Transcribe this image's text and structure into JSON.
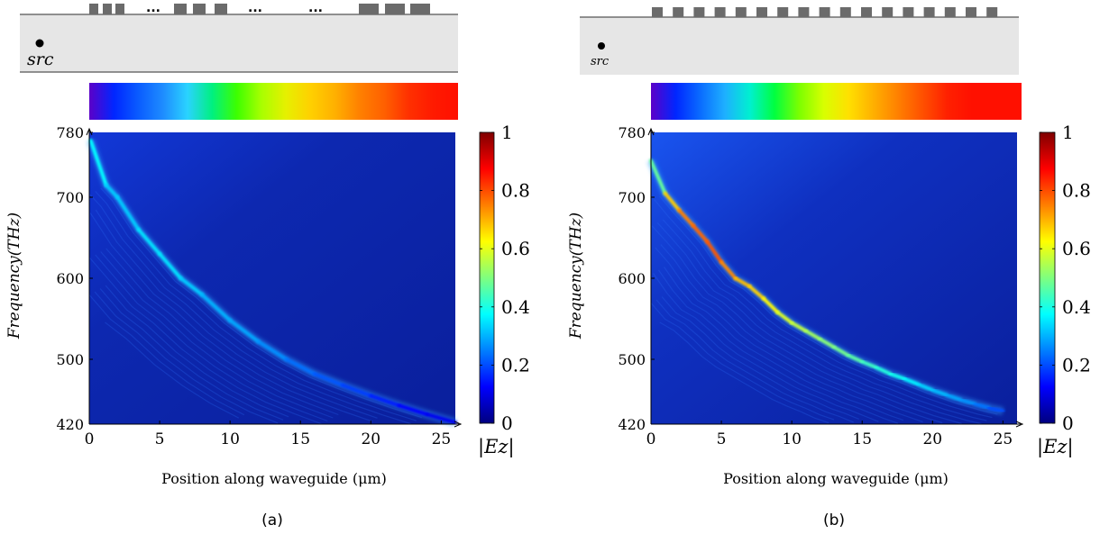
{
  "colors": {
    "waveguide_fill": "#e6e6e6",
    "waveguide_edge": "#555555",
    "grating_tooth": "#6b6b6b",
    "map_background": "#0a1f9c",
    "trace_low": "#1e64ff",
    "trace_high": "#ff4010"
  },
  "colormap": [
    "#00007f",
    "#0000ff",
    "#007fff",
    "#00ffff",
    "#7fff7f",
    "#ffff00",
    "#ff7f00",
    "#ff0000",
    "#7f0000"
  ],
  "panels": [
    {
      "caption": "(a)",
      "source_label": "src",
      "ellipsis": [
        "...",
        "...",
        "..."
      ],
      "spectrum_stops": [
        "#5c00c8",
        "#0026ff",
        "#0a5cff",
        "#1e8cff",
        "#2ad3ff",
        "#00f080",
        "#3cff00",
        "#a8ff00",
        "#e6f000",
        "#ffd000",
        "#ffb000",
        "#ff8000",
        "#ff6000",
        "#ff3000",
        "#ff1a00",
        "#ff1000"
      ]
    },
    {
      "caption": "(b)",
      "source_label": "src",
      "spectrum_stops": [
        "#5c00c8",
        "#0026ff",
        "#0a6cff",
        "#1eb0ff",
        "#00f0d0",
        "#00ff40",
        "#7cff00",
        "#d8ff00",
        "#ffe000",
        "#ffb000",
        "#ff8000",
        "#ff5000",
        "#ff2000",
        "#ff1000",
        "#ff1000",
        "#ff1000"
      ]
    }
  ],
  "chart_data": [
    {
      "type": "heatmap",
      "panel": "(a)",
      "xlabel": "Position along waveguide (μm)",
      "ylabel": "Frequency(THz)",
      "xlim": [
        0,
        26
      ],
      "ylim": [
        420,
        780
      ],
      "x_ticks": [
        0,
        5,
        10,
        15,
        20,
        25
      ],
      "y_ticks": [
        420,
        500,
        600,
        700,
        780
      ],
      "colorbar_label": "|Ez|",
      "colorbar_range": [
        0,
        1
      ],
      "colorbar_ticks": [
        0,
        0.2,
        0.4,
        0.6,
        0.8,
        1
      ],
      "ridge": {
        "x": [
          0.1,
          1.2,
          2.0,
          3.5,
          5.0,
          6.5,
          8.0,
          10.0,
          12.0,
          14.0,
          16.0,
          18.0,
          20.0,
          22.0,
          24.0,
          26.0
        ],
        "y": [
          770,
          715,
          700,
          660,
          630,
          600,
          580,
          548,
          522,
          500,
          482,
          468,
          455,
          443,
          432,
          422
        ],
        "intensity": [
          0.4,
          0.35,
          0.3,
          0.35,
          0.35,
          0.35,
          0.3,
          0.3,
          0.28,
          0.25,
          0.22,
          0.2,
          0.17,
          0.14,
          0.12,
          0.1
        ]
      }
    },
    {
      "type": "heatmap",
      "panel": "(b)",
      "xlabel": "Position along waveguide (μm)",
      "ylabel": "Frequency(THz)",
      "xlim": [
        0,
        26
      ],
      "ylim": [
        420,
        780
      ],
      "x_ticks": [
        0,
        5,
        10,
        15,
        20,
        25
      ],
      "y_ticks": [
        420,
        500,
        600,
        700,
        780
      ],
      "colorbar_label": "|Ez|",
      "colorbar_range": [
        0,
        1
      ],
      "colorbar_ticks": [
        0,
        0.2,
        0.4,
        0.6,
        0.8,
        1
      ],
      "ridge": {
        "x": [
          0.0,
          1.0,
          2.0,
          3.0,
          4.0,
          5.0,
          6.0,
          7.0,
          8.0,
          9.0,
          10.0,
          11.0,
          12.0,
          13.0,
          14.0,
          15.0,
          16.0,
          17.0,
          18.0,
          19.0,
          20.0,
          21.0,
          22.0,
          23.0,
          24.0,
          25.0
        ],
        "y": [
          745,
          705,
          684,
          665,
          645,
          620,
          600,
          590,
          575,
          558,
          545,
          535,
          525,
          515,
          505,
          497,
          490,
          482,
          476,
          469,
          462,
          456,
          450,
          445,
          440,
          436
        ],
        "intensity": [
          0.35,
          0.6,
          0.75,
          0.75,
          0.8,
          0.78,
          0.7,
          0.68,
          0.66,
          0.6,
          0.58,
          0.55,
          0.52,
          0.5,
          0.48,
          0.45,
          0.42,
          0.4,
          0.38,
          0.35,
          0.32,
          0.3,
          0.28,
          0.26,
          0.22,
          0.18
        ]
      }
    }
  ]
}
